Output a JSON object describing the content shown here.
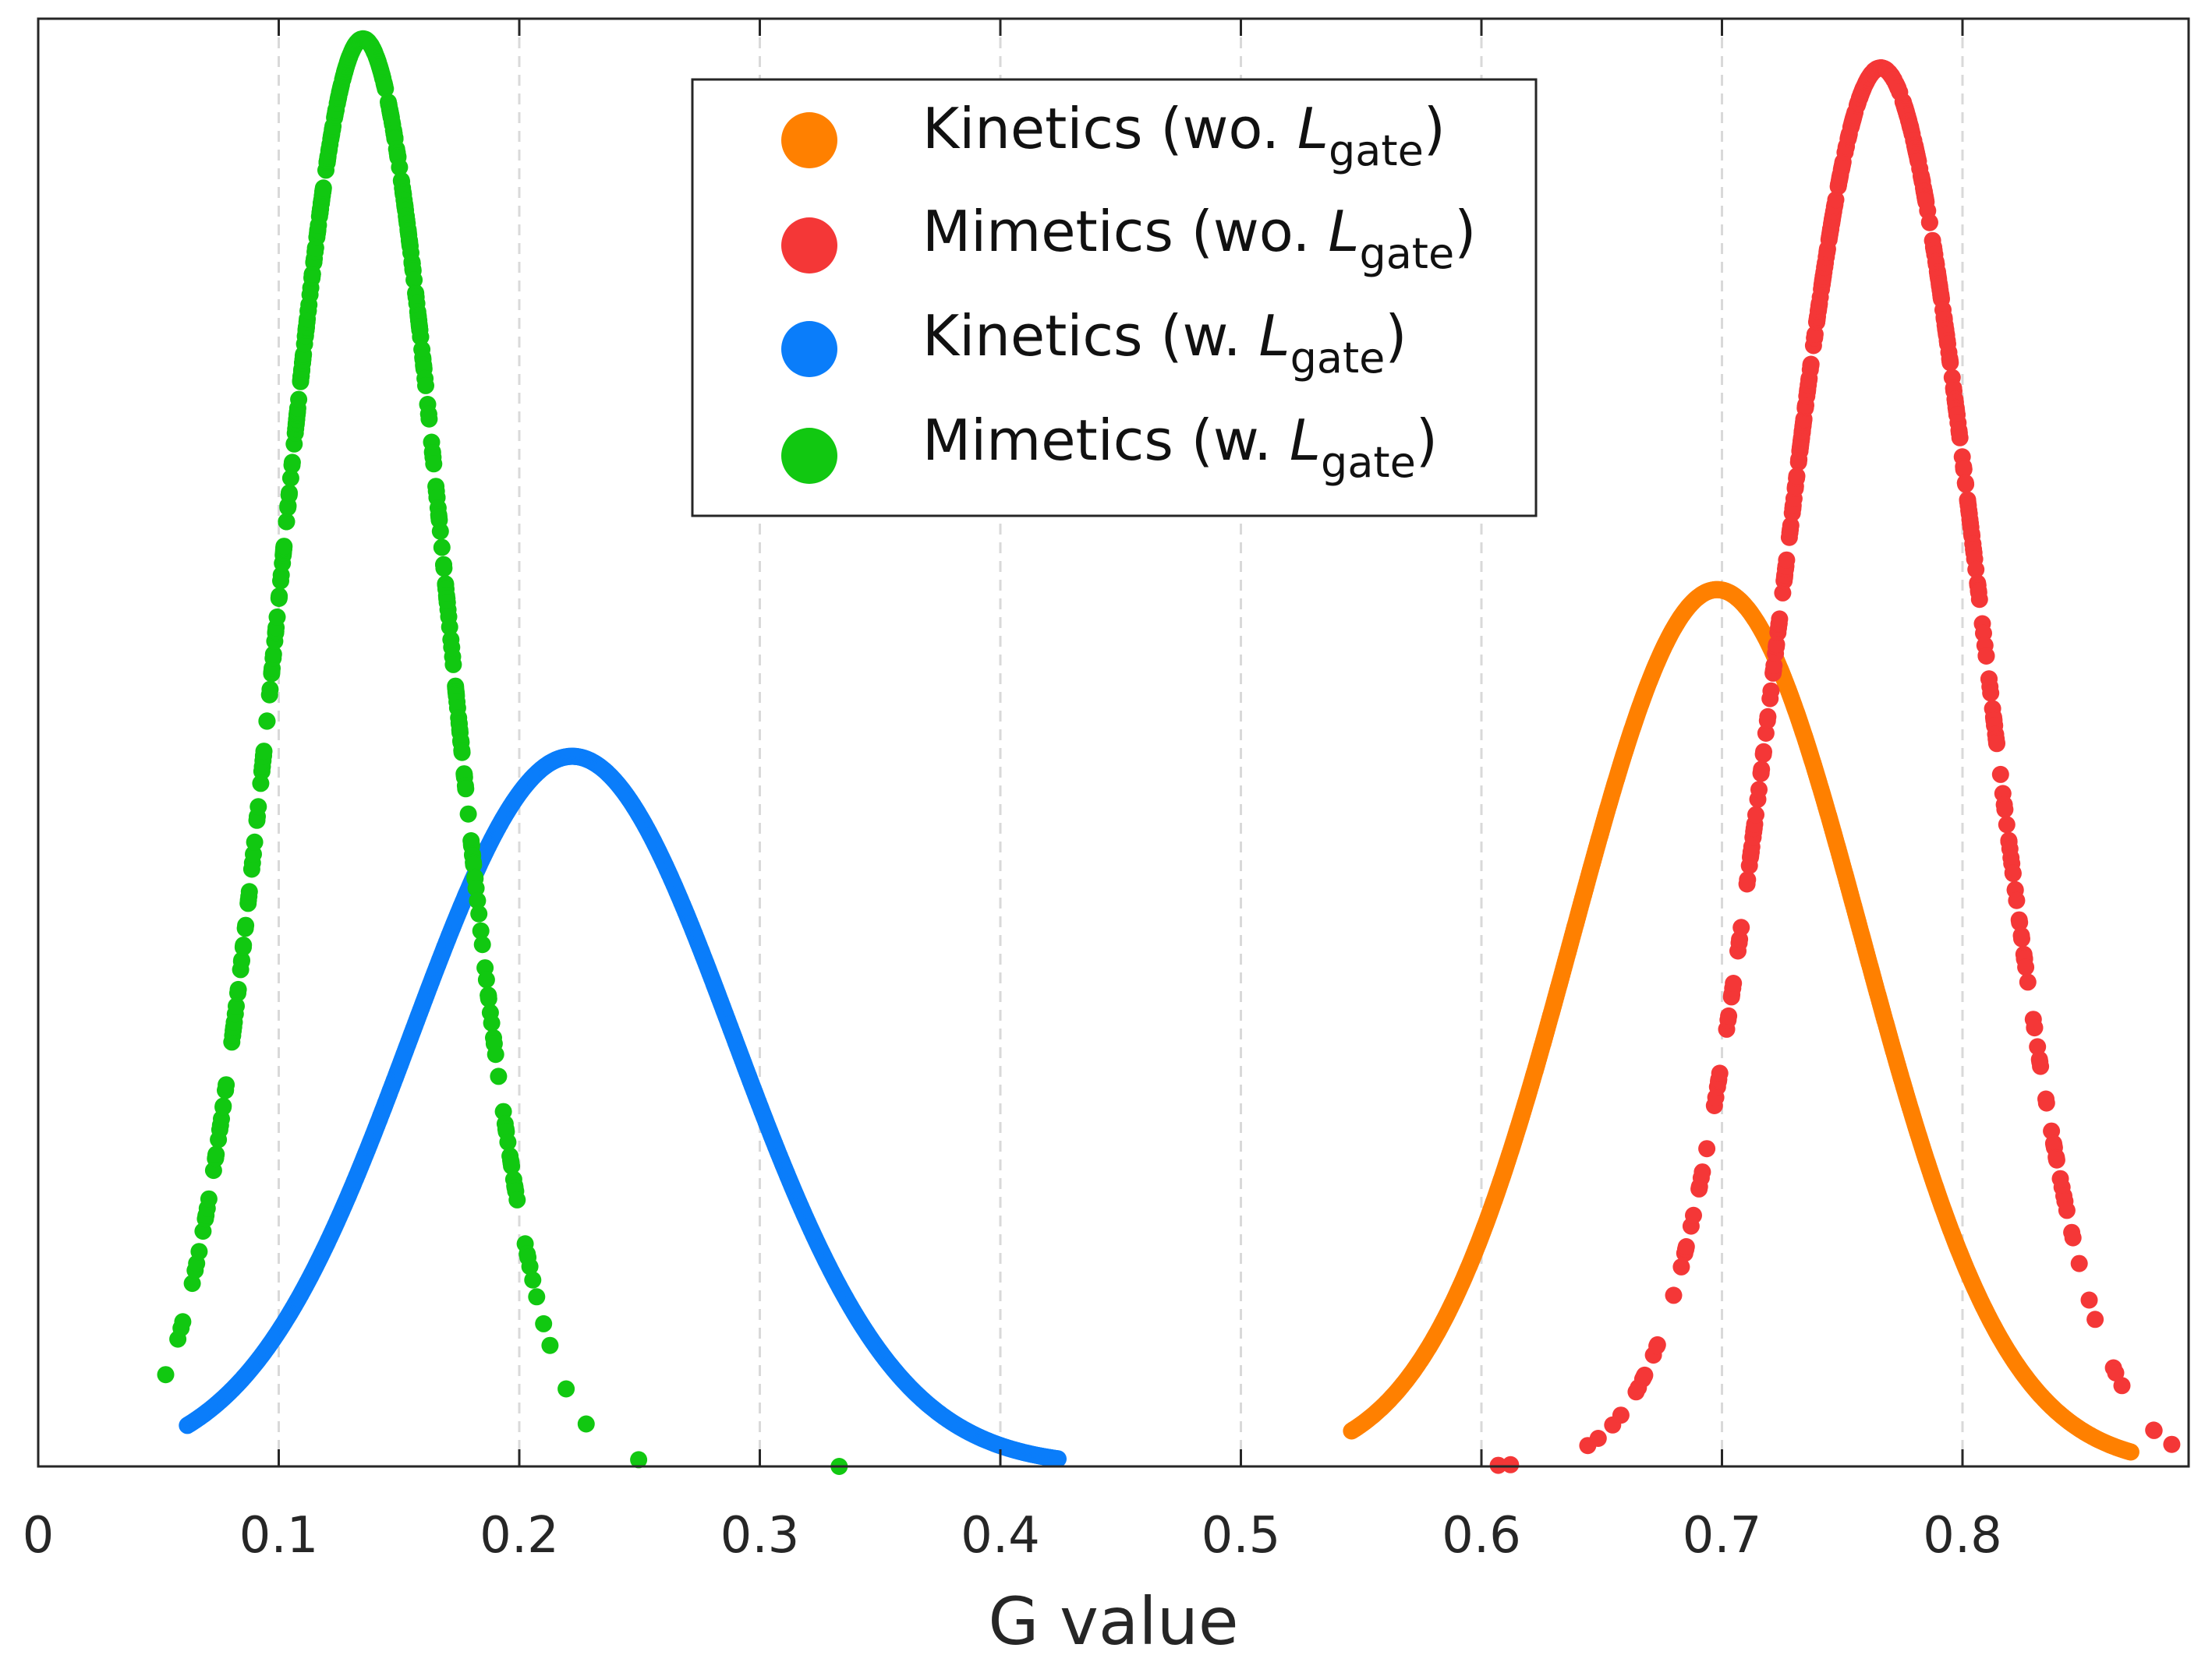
{
  "chart_data": {
    "type": "scatter",
    "title": "",
    "xlabel": "G value",
    "ylabel": "",
    "xlim": [
      0,
      0.9
    ],
    "ylim": [
      0,
      1.0
    ],
    "x_ticks": [
      "0",
      "0.1",
      "0.2",
      "0.3",
      "0.4",
      "0.5",
      "0.6",
      "0.7",
      "0.8"
    ],
    "grid": "vertical dashed",
    "legend_placement": "top-center",
    "series": [
      {
        "name": "Kinetics (wo. L_gate)",
        "legend_main": "Kinetics (wo. ",
        "legend_sym": "L",
        "legend_sub": "gate",
        "legend_close": ")",
        "color": "#ff8000",
        "distribution": "gaussian",
        "mean": 0.698,
        "std": 0.06,
        "peak": 0.605,
        "range": [
          0.546,
          0.87
        ],
        "density": "continuous"
      },
      {
        "name": "Mimetics (wo. L_gate)",
        "legend_main": "Mimetics (wo. ",
        "legend_sym": "L",
        "legend_sub": "gate",
        "legend_close": ")",
        "color": "#f43737",
        "distribution": "gaussian",
        "mean": 0.766,
        "std": 0.042,
        "peak": 0.965,
        "range": [
          0.607,
          0.887
        ],
        "density": "sparse"
      },
      {
        "name": "Kinetics (w. L_gate)",
        "legend_main": "Kinetics (w. ",
        "legend_sym": "L",
        "legend_sub": "gate",
        "legend_close": ")",
        "color": "#0a7dfa",
        "distribution": "gaussian",
        "mean": 0.222,
        "std": 0.067,
        "peak": 0.49,
        "range": [
          0.062,
          0.424
        ],
        "density": "continuous"
      },
      {
        "name": "Mimetics (w. L_gate)",
        "legend_main": "Mimetics (w. ",
        "legend_sym": "L",
        "legend_sub": "gate",
        "legend_close": ")",
        "color": "#11c811",
        "distribution": "gaussian",
        "mean": 0.135,
        "std": 0.035,
        "peak": 0.985,
        "range": [
          0.053,
          0.333
        ],
        "density": "sparse"
      }
    ]
  }
}
